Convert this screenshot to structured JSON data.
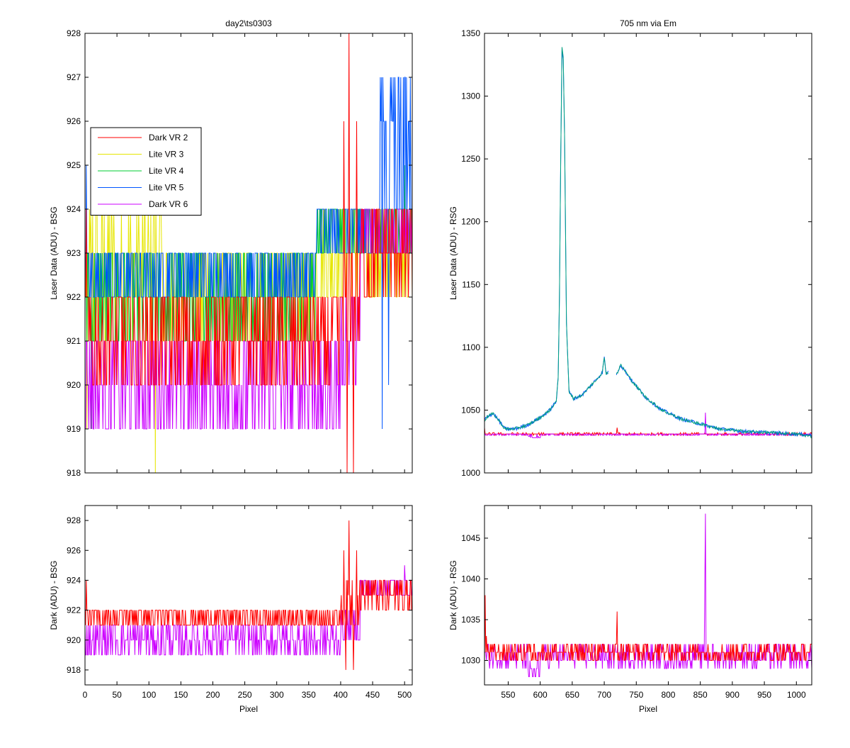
{
  "figure": {
    "background": "#ffffff"
  },
  "chart_data": [
    {
      "id": "tl",
      "type": "line",
      "title": "day2\\ts0303",
      "xlabel": "",
      "ylabel": "Laser Data (ADU) - BSG",
      "xlim": [
        0,
        512
      ],
      "ylim": [
        918,
        928
      ],
      "xticks": [],
      "yticks": [
        918,
        919,
        920,
        921,
        922,
        923,
        924,
        925,
        926,
        927,
        928
      ],
      "legend": {
        "placement": "upper-left",
        "entries": [
          {
            "label": "Dark VR 2",
            "color": "#ff0000"
          },
          {
            "label": "Lite VR 3",
            "color": "#e6e600"
          },
          {
            "label": "Lite VR 4",
            "color": "#00cc33"
          },
          {
            "label": "Lite VR 5",
            "color": "#0055ff"
          },
          {
            "label": "Dark VR 6",
            "color": "#cc00ff"
          }
        ]
      },
      "series": [
        {
          "name": "Lite VR 3",
          "color": "#e6e600",
          "noise": [
            {
              "x": [
                0,
                120
              ],
              "levels": [
                921,
                922,
                923,
                924
              ]
            },
            {
              "x": [
                120,
                360
              ],
              "levels": [
                921,
                922,
                923
              ]
            },
            {
              "x": [
                360,
                512
              ],
              "levels": [
                922,
                923,
                924
              ]
            }
          ],
          "spikes": [
            [
              3,
              919
            ],
            [
              110,
              918
            ],
            [
              108,
              924
            ],
            [
              68,
              924
            ]
          ]
        },
        {
          "name": "Lite VR 4",
          "color": "#00cc33",
          "noise": [
            {
              "x": [
                0,
                120
              ],
              "levels": [
                921,
                922,
                923
              ]
            },
            {
              "x": [
                120,
                360
              ],
              "levels": [
                921,
                922,
                923
              ]
            },
            {
              "x": [
                360,
                512
              ],
              "levels": [
                923,
                924
              ]
            }
          ],
          "spikes": [
            [
              10,
              919
            ],
            [
              500,
              925
            ],
            [
              485,
              924
            ]
          ]
        },
        {
          "name": "Lite VR 5",
          "color": "#0055ff",
          "noise": [
            {
              "x": [
                0,
                360
              ],
              "levels": [
                922,
                923
              ]
            },
            {
              "x": [
                360,
                460
              ],
              "levels": [
                923,
                924
              ]
            },
            {
              "x": [
                460,
                512
              ],
              "levels": [
                924,
                926,
                927
              ]
            }
          ],
          "spikes": [
            [
              2,
              925
            ],
            [
              465,
              919
            ],
            [
              475,
              920
            ],
            [
              490,
              927
            ],
            [
              505,
              925
            ]
          ]
        },
        {
          "name": "Dark VR 6",
          "color": "#cc00ff",
          "noise": [
            {
              "x": [
                0,
                400
              ],
              "levels": [
                919,
                920,
                921
              ]
            },
            {
              "x": [
                400,
                430
              ],
              "levels": [
                920,
                921,
                922
              ]
            },
            {
              "x": [
                430,
                512
              ],
              "levels": [
                923,
                924
              ]
            }
          ],
          "spikes": []
        },
        {
          "name": "Dark VR 2",
          "color": "#ff0000",
          "noise": [
            {
              "x": [
                0,
                400
              ],
              "levels": [
                920,
                921,
                922
              ]
            },
            {
              "x": [
                400,
                430
              ],
              "levels": [
                921,
                922,
                923
              ]
            },
            {
              "x": [
                430,
                512
              ],
              "levels": [
                922,
                923,
                924
              ]
            }
          ],
          "spikes": [
            [
              413,
              928
            ],
            [
              410,
              918
            ],
            [
              420,
              918
            ],
            [
              405,
              926
            ],
            [
              425,
              926
            ],
            [
              2,
              924
            ]
          ]
        }
      ]
    },
    {
      "id": "tr",
      "type": "line",
      "title": "705 nm via Em",
      "xlabel": "",
      "ylabel": "Laser Data (ADU) - RSG",
      "xlim": [
        513,
        1024
      ],
      "ylim": [
        1000,
        1350
      ],
      "xticks": [],
      "yticks": [
        1000,
        1050,
        1100,
        1150,
        1200,
        1250,
        1300,
        1350
      ],
      "series": [
        {
          "name": "Dark VR 2",
          "color": "#ff0000",
          "base": 1031,
          "amp": 0.7,
          "spikes": [
            [
              720,
              1036
            ],
            [
              513,
              1036
            ]
          ]
        },
        {
          "name": "Dark VR 6",
          "color": "#cc00ff",
          "base": 1030.5,
          "amp": 0.8,
          "dips": [
            [
              580,
              600,
              1028
            ]
          ],
          "spikes": [
            [
              858,
              1048
            ]
          ]
        },
        {
          "name": "Lite VR 5",
          "color": "#0055ff",
          "amp": 1.5,
          "points": [
            [
              513,
              1042
            ],
            [
              520,
              1046
            ],
            [
              527,
              1047
            ],
            [
              535,
              1042
            ],
            [
              545,
              1035
            ],
            [
              560,
              1035
            ],
            [
              580,
              1038
            ],
            [
              600,
              1044
            ],
            [
              615,
              1050
            ],
            [
              625,
              1057
            ],
            [
              628,
              1075
            ],
            [
              630,
              1140
            ],
            [
              632,
              1250
            ],
            [
              634,
              1338
            ],
            [
              636,
              1330
            ],
            [
              638,
              1270
            ],
            [
              641,
              1120
            ],
            [
              645,
              1065
            ],
            [
              652,
              1059
            ],
            [
              665,
              1062
            ],
            [
              680,
              1070
            ],
            [
              692,
              1077
            ],
            [
              697,
              1080
            ],
            [
              700,
              1092
            ],
            [
              703,
              1079
            ],
            [
              705,
              1080
            ],
            [
              720,
              1079
            ],
            [
              725,
              1086
            ],
            [
              730,
              1083
            ],
            [
              745,
              1072
            ],
            [
              765,
              1060
            ],
            [
              790,
              1050
            ],
            [
              820,
              1043
            ],
            [
              850,
              1039
            ],
            [
              858,
              1038
            ],
            [
              880,
              1035
            ],
            [
              920,
              1033
            ],
            [
              960,
              1032
            ],
            [
              1000,
              1031
            ],
            [
              1024,
              1030
            ]
          ],
          "gap": [
            706,
            719
          ]
        },
        {
          "name": "Lite VR 4",
          "color": "#00a080",
          "amp": 1.2,
          "points": [
            [
              513,
              1042
            ],
            [
              520,
              1046
            ],
            [
              527,
              1047
            ],
            [
              535,
              1042
            ],
            [
              545,
              1035
            ],
            [
              560,
              1035
            ],
            [
              580,
              1038
            ],
            [
              600,
              1044
            ],
            [
              615,
              1050
            ],
            [
              625,
              1057
            ],
            [
              628,
              1075
            ],
            [
              630,
              1140
            ],
            [
              632,
              1250
            ],
            [
              634,
              1338
            ],
            [
              636,
              1330
            ],
            [
              638,
              1270
            ],
            [
              641,
              1120
            ],
            [
              645,
              1065
            ],
            [
              652,
              1059
            ],
            [
              665,
              1062
            ],
            [
              680,
              1070
            ],
            [
              692,
              1077
            ],
            [
              697,
              1080
            ],
            [
              700,
              1092
            ],
            [
              703,
              1079
            ],
            [
              705,
              1080
            ],
            [
              720,
              1079
            ],
            [
              725,
              1086
            ],
            [
              730,
              1083
            ],
            [
              745,
              1072
            ],
            [
              765,
              1060
            ],
            [
              790,
              1050
            ],
            [
              820,
              1043
            ],
            [
              850,
              1039
            ],
            [
              858,
              1038
            ],
            [
              880,
              1035
            ],
            [
              920,
              1033
            ],
            [
              960,
              1032
            ],
            [
              1000,
              1031
            ],
            [
              1024,
              1029
            ]
          ],
          "gap": [
            706,
            719
          ]
        }
      ]
    },
    {
      "id": "bl",
      "type": "line",
      "title": "",
      "xlabel": "Pixel",
      "ylabel": "Dark (ADU) - BSG",
      "xlim": [
        0,
        512
      ],
      "ylim": [
        917,
        929
      ],
      "xticks": [
        0,
        50,
        100,
        150,
        200,
        250,
        300,
        350,
        400,
        450,
        500
      ],
      "yticks": [
        918,
        920,
        922,
        924,
        926,
        928
      ],
      "series": [
        {
          "name": "Dark VR 6",
          "color": "#cc00ff",
          "noise": [
            {
              "x": [
                0,
                400
              ],
              "levels": [
                919,
                920,
                921
              ]
            },
            {
              "x": [
                400,
                430
              ],
              "levels": [
                920,
                921,
                922
              ]
            },
            {
              "x": [
                430,
                512
              ],
              "levels": [
                923,
                924
              ]
            }
          ],
          "spikes": [
            [
              500,
              925
            ]
          ]
        },
        {
          "name": "Dark VR 2",
          "color": "#ff0000",
          "noise": [
            {
              "x": [
                0,
                400
              ],
              "levels": [
                921,
                922
              ]
            },
            {
              "x": [
                400,
                430
              ],
              "levels": [
                921,
                922,
                923,
                924
              ]
            },
            {
              "x": [
                430,
                512
              ],
              "levels": [
                922,
                923,
                924
              ]
            }
          ],
          "spikes": [
            [
              413,
              928
            ],
            [
              408,
              918
            ],
            [
              420,
              918
            ],
            [
              405,
              926
            ],
            [
              425,
              926
            ],
            [
              2,
              924
            ]
          ]
        }
      ]
    },
    {
      "id": "br",
      "type": "line",
      "title": "",
      "xlabel": "Pixel",
      "ylabel": "Dark (ADU) - RSG",
      "xlim": [
        513,
        1024
      ],
      "ylim": [
        1027,
        1049
      ],
      "xticks": [
        550,
        600,
        650,
        700,
        750,
        800,
        850,
        900,
        950,
        1000
      ],
      "yticks": [
        1030,
        1035,
        1040,
        1045
      ],
      "series": [
        {
          "name": "Dark VR 6",
          "color": "#cc00ff",
          "base": 1030.5,
          "amp": 1.5,
          "dips": [
            [
              580,
              600,
              1028
            ]
          ],
          "spikes": [
            [
              858,
              1048
            ],
            [
              857,
              1039
            ]
          ]
        },
        {
          "name": "Dark VR 2",
          "color": "#ff0000",
          "base": 1031,
          "amp": 1.2,
          "spikes": [
            [
              720,
              1036
            ],
            [
              514,
              1038
            ],
            [
              516,
              1033
            ]
          ]
        }
      ]
    }
  ]
}
